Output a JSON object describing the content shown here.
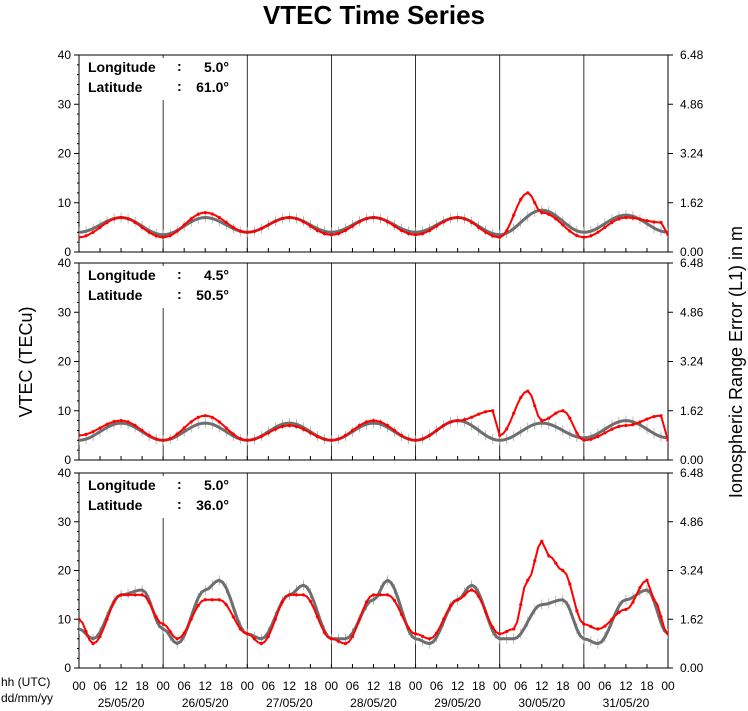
{
  "title": "VTEC Time Series",
  "y_left_label": "VTEC (TECu)",
  "y_right_label": "Ionospheric Range Error (L1) in m",
  "x_label_hours": "hh (UTC)",
  "x_label_dates": "dd/mm/yy",
  "colors": {
    "measured": "#ff0000",
    "reference": "#6e6e6e",
    "reference_error": "#a0a0a0"
  },
  "chart_data": [
    {
      "type": "line",
      "panel": "top",
      "info": {
        "longitude_label": "Longitude",
        "longitude_value": "5.0°",
        "latitude_label": "Latitude",
        "latitude_value": "61.0°"
      },
      "ylim": [
        0,
        40
      ],
      "y_ticks": [
        0,
        10,
        20,
        30,
        40
      ],
      "y_right_ticks": [
        "0.00",
        "1.62",
        "3.24",
        "4.86",
        "6.48"
      ],
      "series": [
        {
          "color": "#6e6e6e",
          "x": [
            0,
            12,
            24,
            36,
            48,
            60,
            72,
            84,
            96,
            108,
            120,
            132,
            144,
            156,
            168
          ],
          "values": [
            4,
            7,
            3.5,
            7,
            4,
            7,
            4,
            7,
            4,
            7,
            3.5,
            8.5,
            4,
            7.5,
            4
          ]
        },
        {
          "color": "#ff0000",
          "x": [
            0,
            12,
            24,
            36,
            48,
            60,
            72,
            84,
            96,
            108,
            120,
            128,
            132,
            144,
            156,
            166,
            168
          ],
          "values": [
            3,
            7,
            3,
            8,
            4,
            7,
            3.5,
            7,
            3.5,
            7,
            3,
            12,
            8,
            3,
            7,
            6,
            3.5
          ]
        }
      ]
    },
    {
      "type": "line",
      "panel": "middle",
      "info": {
        "longitude_label": "Longitude",
        "longitude_value": "4.5°",
        "latitude_label": "Latitude",
        "latitude_value": "50.5°"
      },
      "ylim": [
        0,
        40
      ],
      "y_ticks": [
        0,
        10,
        20,
        30,
        40
      ],
      "y_right_ticks": [
        "0.00",
        "1.62",
        "3.24",
        "4.86",
        "6.48"
      ],
      "series": [
        {
          "color": "#6e6e6e",
          "x": [
            0,
            12,
            24,
            36,
            48,
            60,
            72,
            84,
            96,
            108,
            120,
            132,
            144,
            156,
            168
          ],
          "values": [
            4,
            7.5,
            4,
            7.5,
            4,
            7.5,
            4,
            7.5,
            4,
            8,
            4,
            7.5,
            4.5,
            8,
            4.5
          ]
        },
        {
          "color": "#ff0000",
          "x": [
            0,
            12,
            24,
            36,
            48,
            60,
            72,
            84,
            96,
            108,
            118,
            120,
            128,
            132,
            138,
            144,
            156,
            166,
            168
          ],
          "values": [
            5,
            8,
            4,
            9,
            4,
            7,
            4,
            8,
            4,
            8,
            10,
            5,
            14,
            8,
            10,
            4,
            7,
            9,
            4
          ]
        }
      ]
    },
    {
      "type": "line",
      "panel": "bottom",
      "info": {
        "longitude_label": "Longitude",
        "longitude_value": "5.0°",
        "latitude_label": "Latitude",
        "latitude_value": "36.0°"
      },
      "ylim": [
        0,
        40
      ],
      "y_ticks": [
        0,
        10,
        20,
        30,
        40
      ],
      "y_right_ticks": [
        "0.00",
        "1.62",
        "3.24",
        "4.86",
        "6.48"
      ],
      "series": [
        {
          "color": "#6e6e6e",
          "x": [
            0,
            4,
            12,
            18,
            24,
            28,
            36,
            40,
            48,
            52,
            60,
            64,
            72,
            76,
            84,
            88,
            96,
            100,
            108,
            112,
            120,
            124,
            132,
            138,
            144,
            148,
            156,
            162,
            168
          ],
          "values": [
            8,
            6,
            15,
            16,
            8,
            5,
            16,
            18,
            7,
            6,
            15,
            17,
            6,
            6,
            14,
            18,
            6,
            5,
            14,
            17,
            6,
            6,
            13,
            14,
            6,
            5,
            14,
            16,
            7
          ]
        },
        {
          "color": "#ff0000",
          "x": [
            0,
            4,
            12,
            18,
            24,
            28,
            36,
            40,
            48,
            52,
            60,
            64,
            72,
            76,
            84,
            88,
            96,
            100,
            108,
            112,
            120,
            124,
            128,
            132,
            134,
            138,
            144,
            148,
            156,
            162,
            164,
            168
          ],
          "values": [
            10,
            5,
            15,
            15,
            9,
            6,
            14,
            14,
            7,
            5,
            15,
            15,
            6,
            5,
            15,
            15,
            7,
            6,
            14,
            16,
            7,
            8,
            18,
            26,
            23,
            20,
            9,
            8,
            12,
            18,
            14,
            7
          ]
        }
      ]
    }
  ],
  "x_hour_ticks": [
    "00",
    "06",
    "12",
    "18",
    "00",
    "06",
    "12",
    "18",
    "00",
    "06",
    "12",
    "18",
    "00",
    "06",
    "12",
    "18",
    "00",
    "06",
    "12",
    "18",
    "00",
    "06",
    "12",
    "18",
    "00",
    "06",
    "12",
    "18",
    "00"
  ],
  "date_labels": [
    "25/05/20",
    "26/05/20",
    "27/05/20",
    "28/05/20",
    "29/05/20",
    "30/05/20",
    "31/05/20"
  ]
}
